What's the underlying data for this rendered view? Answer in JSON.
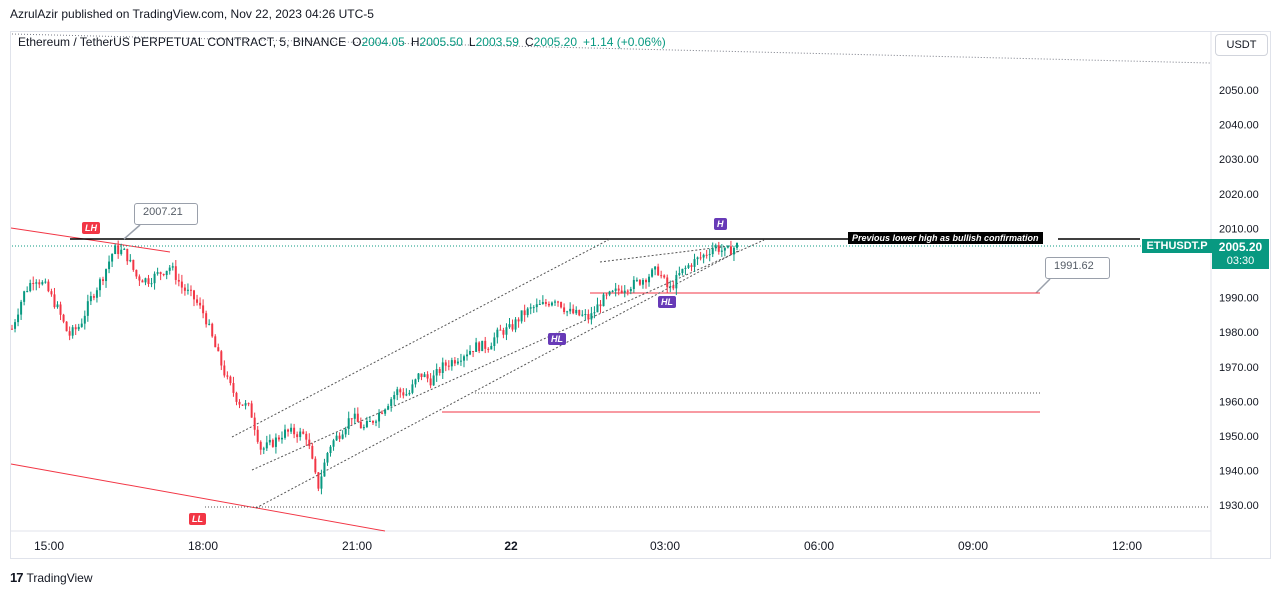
{
  "header": {
    "publisher_caption": "AzrulAzir published on TradingView.com, Nov 22, 2023 04:26 UTC-5"
  },
  "legend": {
    "symbol": "Ethereum / TetherUS PERPETUAL CONTRACT, 5, BINANCE",
    "o_label": "O",
    "o": "2004.05",
    "h_label": "H",
    "h": "2005.50",
    "l_label": "L",
    "l": "2003.59",
    "c_label": "C",
    "c": "2005.20",
    "change": "+1.14 (+0.06%)"
  },
  "toolbar": {
    "currency": "USDT"
  },
  "price_scale": {
    "symbol_badge": "ETHUSDT.P",
    "last_price": "2005.20",
    "countdown": "03:30"
  },
  "annotations": {
    "callout_left": "2007.21",
    "callout_right": "1991.62",
    "confirmation_note": "Previous lower high as bullish confirmation",
    "marker_lh": "LH",
    "marker_ll": "LL",
    "marker_h": "H",
    "marker_hl_1": "HL",
    "marker_hl_2": "HL"
  },
  "footer": {
    "brand": "TradingView",
    "logo_text": "17"
  },
  "colors": {
    "up": "#089981",
    "down": "#f23645",
    "accent_purple": "#673ab7"
  },
  "chart_data": {
    "type": "candlestick",
    "timeframe": "5",
    "x_ticks": [
      "15:00",
      "18:00",
      "21:00",
      "22",
      "03:00",
      "06:00",
      "09:00",
      "12:00"
    ],
    "y_ticks": [
      2050,
      2040,
      2030,
      2020,
      2010,
      1990,
      1980,
      1970,
      1960,
      1950,
      1940,
      1930
    ],
    "ylim": [
      1925,
      2062
    ],
    "last_price": 2005.2,
    "levels": [
      {
        "label": "2007.21",
        "value": 2007.21
      },
      {
        "label": "1991.62",
        "value": 1991.62
      }
    ],
    "horizontal_lines": [
      2007.21,
      1991.62,
      1962.5,
      1957,
      1929.5
    ],
    "swing_points": [
      "LH",
      "LL",
      "HL",
      "HL",
      "H"
    ],
    "approx_close_path": [
      1981,
      1991,
      1996,
      1993,
      1987,
      1979,
      1982,
      1990,
      1996,
      2004,
      2003,
      1996,
      1995,
      1997,
      1999,
      1993,
      1990,
      1985,
      1975,
      1966,
      1960,
      1958,
      1946,
      1948,
      1951,
      1951,
      1950,
      1935,
      1947,
      1951,
      1956,
      1952,
      1955,
      1959,
      1963,
      1962,
      1968,
      1966,
      1970,
      1972,
      1974,
      1976,
      1976,
      1980,
      1981,
      1985,
      1987,
      1988,
      1990,
      1986,
      1985,
      1984,
      1989,
      1991,
      1993,
      1994,
      1996,
      1998,
      1992,
      1997,
      2000,
      2002,
      2005,
      2003,
      2005
    ]
  }
}
